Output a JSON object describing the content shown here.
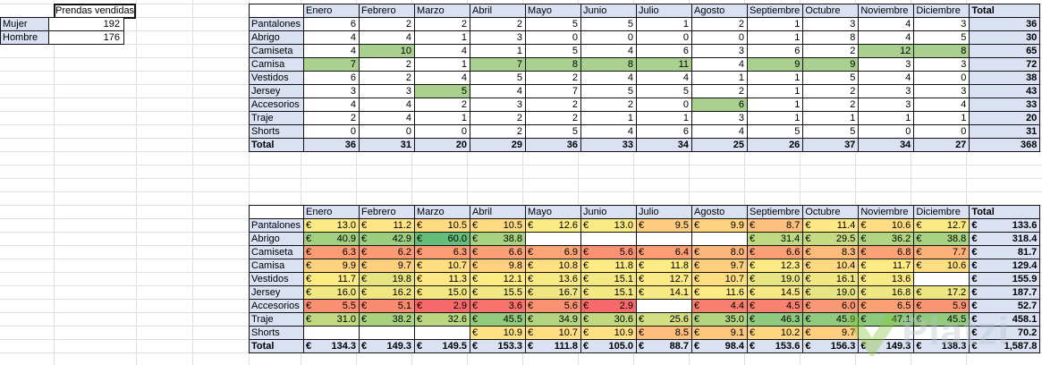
{
  "summary_table": {
    "title": "Prendas vendidas",
    "rows": [
      {
        "label": "Mujer",
        "value": "192"
      },
      {
        "label": "Hombre",
        "value": "176"
      }
    ]
  },
  "months": [
    "Enero",
    "Febrero",
    "Marzo",
    "Abril",
    "Mayo",
    "Junio",
    "Julio",
    "Agosto",
    "Septiembre",
    "Octubre",
    "Noviembre",
    "Diciembre"
  ],
  "total_label": "Total",
  "units_table": {
    "rows": [
      {
        "label": "Pantalones",
        "values": [
          6,
          2,
          2,
          2,
          5,
          5,
          1,
          2,
          1,
          3,
          4,
          3
        ],
        "total": "36"
      },
      {
        "label": "Abrigo",
        "values": [
          4,
          4,
          1,
          3,
          0,
          0,
          0,
          0,
          1,
          8,
          4,
          5
        ],
        "total": "30"
      },
      {
        "label": "Camiseta",
        "values": [
          4,
          10,
          4,
          1,
          5,
          4,
          6,
          3,
          6,
          2,
          12,
          8
        ],
        "total": "65"
      },
      {
        "label": "Camisa",
        "values": [
          7,
          2,
          1,
          7,
          8,
          8,
          11,
          4,
          9,
          9,
          3,
          3
        ],
        "total": "72"
      },
      {
        "label": "Vestidos",
        "values": [
          6,
          2,
          4,
          5,
          2,
          4,
          4,
          1,
          1,
          5,
          4,
          0
        ],
        "total": "38"
      },
      {
        "label": "Jersey",
        "values": [
          3,
          3,
          5,
          4,
          7,
          5,
          5,
          2,
          1,
          2,
          3,
          3
        ],
        "total": "43"
      },
      {
        "label": "Accesorios",
        "values": [
          4,
          4,
          2,
          3,
          2,
          2,
          0,
          6,
          1,
          2,
          3,
          4
        ],
        "total": "33"
      },
      {
        "label": "Traje",
        "values": [
          2,
          4,
          1,
          2,
          2,
          1,
          1,
          3,
          1,
          1,
          1,
          1
        ],
        "total": "20"
      },
      {
        "label": "Shorts",
        "values": [
          0,
          0,
          0,
          2,
          5,
          4,
          6,
          4,
          5,
          5,
          0,
          0
        ],
        "total": "31"
      }
    ],
    "total_row": {
      "label": "Total",
      "values": [
        36,
        31,
        20,
        29,
        36,
        33,
        34,
        25,
        26,
        37,
        34,
        27
      ],
      "total": "368"
    }
  },
  "revenue_table": {
    "currency": "€",
    "rows": [
      {
        "label": "Pantalones",
        "values": [
          13.0,
          11.2,
          10.5,
          10.5,
          12.6,
          13.0,
          9.5,
          9.9,
          8.7,
          11.4,
          10.6,
          12.7
        ],
        "total": "133.6"
      },
      {
        "label": "Abrigo",
        "values": [
          40.9,
          42.9,
          60.0,
          38.8,
          null,
          null,
          null,
          null,
          31.4,
          29.5,
          36.2,
          38.8
        ],
        "total": "318.4"
      },
      {
        "label": "Camiseta",
        "values": [
          6.3,
          6.2,
          6.3,
          6.6,
          6.9,
          5.6,
          6.4,
          8.0,
          6.6,
          8.3,
          6.8,
          7.7
        ],
        "total": "81.7"
      },
      {
        "label": "Camisa",
        "values": [
          9.9,
          9.7,
          10.7,
          9.8,
          10.8,
          11.8,
          11.8,
          9.7,
          12.3,
          10.4,
          11.7,
          10.6
        ],
        "total": "129.4"
      },
      {
        "label": "Vestidos",
        "values": [
          11.7,
          19.8,
          11.3,
          12.1,
          13.6,
          15.1,
          12.7,
          10.7,
          19.0,
          16.1,
          13.6,
          null
        ],
        "total": "155.9"
      },
      {
        "label": "Jersey",
        "values": [
          16.0,
          16.2,
          15.0,
          15.5,
          16.7,
          15.1,
          14.1,
          11.6,
          14.5,
          19.0,
          16.8,
          17.2
        ],
        "total": "187.7"
      },
      {
        "label": "Accesorios",
        "values": [
          5.5,
          5.1,
          2.9,
          3.6,
          5.6,
          2.9,
          null,
          4.4,
          4.5,
          6.0,
          6.5,
          5.9
        ],
        "total": "52.7"
      },
      {
        "label": "Traje",
        "values": [
          31.0,
          38.2,
          32.6,
          45.5,
          34.9,
          30.6,
          25.6,
          35.0,
          46.3,
          45.9,
          47.1,
          45.5
        ],
        "total": "458.1"
      },
      {
        "label": "Shorts",
        "values": [
          null,
          null,
          null,
          10.9,
          10.7,
          10.9,
          8.5,
          9.1,
          10.2,
          9.7,
          null,
          null
        ],
        "total": "70.2"
      }
    ],
    "total_row": {
      "label": "Total",
      "values": [
        "134.3",
        "149.3",
        "149.5",
        "153.3",
        "111.8",
        "105.0",
        "88.7",
        "98.4",
        "153.6",
        "156.3",
        "149.3",
        "138.3"
      ],
      "total": "1,587.8"
    }
  },
  "colors": {
    "header_fill": "#D9E1F2",
    "column_max_highlight": "#A9D08E",
    "scale_min_color": "#F8696B",
    "scale_mid_color": "#FFEB84",
    "scale_max_color": "#63BE7B"
  },
  "watermark": {
    "text": "Platzi",
    "logo_color": "#8CC63F"
  }
}
